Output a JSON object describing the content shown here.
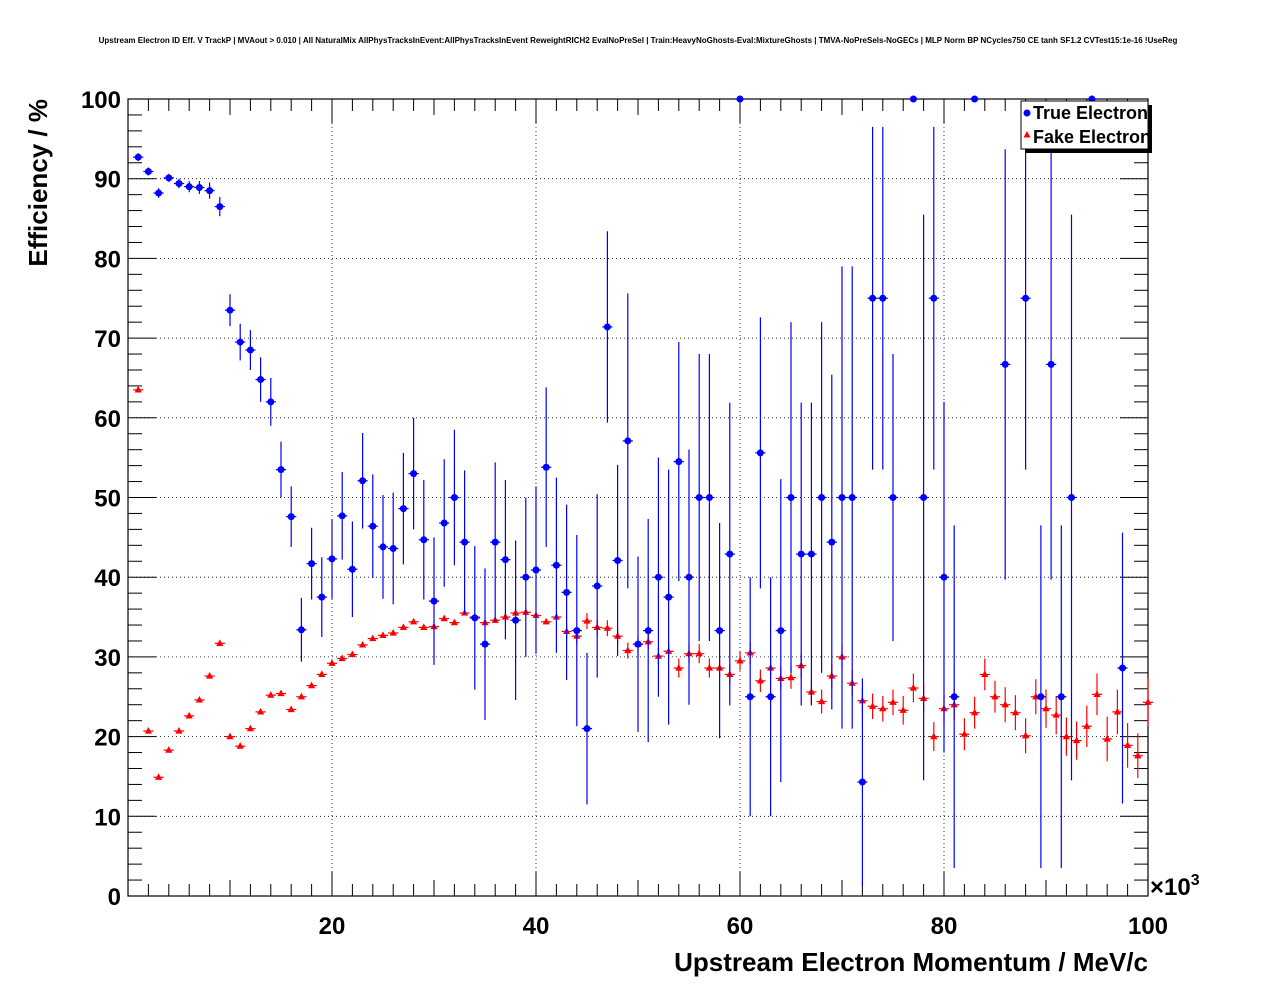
{
  "chart_data": {
    "type": "scatter",
    "title": "Upstream Electron ID Eff. V TrackP | MVAout > 0.010 | All NaturalMix AllPhysTracksInEvent:AllPhysTracksInEvent ReweightRICH2 EvalNoPreSel | Train:HeavyNoGhosts-Eval:MixtureGhosts | TMVA-NoPreSels-NoGECs | MLP Norm BP NCycles750 CE tanh SF1.2 CVTest15:1e-16 !UseReg",
    "xlabel": "Upstream Electron Momentum / MeV/c",
    "ylabel": "Efficiency / %",
    "x_exponent_label": "×10",
    "x_exponent_power": "3",
    "xlim": [
      0,
      100
    ],
    "ylim": [
      0,
      100
    ],
    "x_ticks": [
      "20",
      "40",
      "60",
      "80",
      "100"
    ],
    "y_ticks": [
      "0",
      "10",
      "20",
      "30",
      "40",
      "50",
      "60",
      "70",
      "80",
      "90",
      "100"
    ],
    "grid": true,
    "legend_position": "top-right",
    "colors": {
      "true_electron": "#0000ff",
      "fake_electron": "#ff0000",
      "axis": "#000000"
    },
    "series": [
      {
        "name": "True Electron",
        "marker": "circle",
        "points": [
          [
            1,
            92.7,
            0.5
          ],
          [
            2,
            90.9,
            0.5
          ],
          [
            3,
            88.2,
            0.6
          ],
          [
            4,
            90.1,
            0.5
          ],
          [
            5,
            89.4,
            0.6
          ],
          [
            6,
            89.0,
            0.7
          ],
          [
            7,
            88.9,
            0.8
          ],
          [
            8,
            88.5,
            1.0
          ],
          [
            9,
            86.5,
            1.2
          ],
          [
            10,
            73.5,
            2.0
          ],
          [
            11,
            69.5,
            2.3
          ],
          [
            12,
            68.5,
            2.5
          ],
          [
            13,
            64.8,
            2.8
          ],
          [
            14,
            62.0,
            3.0
          ],
          [
            15,
            53.5,
            3.5
          ],
          [
            16,
            47.6,
            3.8
          ],
          [
            17,
            33.4,
            4.0
          ],
          [
            18,
            41.7,
            4.5
          ],
          [
            19,
            37.5,
            5.0
          ],
          [
            20,
            42.3,
            5.0
          ],
          [
            21,
            47.7,
            5.5
          ],
          [
            22,
            41.0,
            6.0
          ],
          [
            23,
            52.1,
            6.0
          ],
          [
            24,
            46.4,
            6.5
          ],
          [
            25,
            43.8,
            6.5
          ],
          [
            26,
            43.6,
            7.0
          ],
          [
            27,
            48.6,
            7.0
          ],
          [
            28,
            53.0,
            7.0
          ],
          [
            29,
            44.7,
            7.5
          ],
          [
            30,
            37.0,
            8.0
          ],
          [
            31,
            46.8,
            8.0
          ],
          [
            32,
            50.0,
            8.5
          ],
          [
            33,
            44.4,
            9.0
          ],
          [
            34,
            34.9,
            9.0
          ],
          [
            35,
            31.6,
            9.5
          ],
          [
            36,
            44.4,
            10.0
          ],
          [
            37,
            42.2,
            10.0
          ],
          [
            38,
            34.6,
            10.0
          ],
          [
            39,
            40.0,
            10.0
          ],
          [
            40,
            40.9,
            10.5
          ],
          [
            41,
            53.8,
            10.0
          ],
          [
            42,
            41.5,
            11.0
          ],
          [
            43,
            38.1,
            11.0
          ],
          [
            44,
            33.3,
            12.0
          ],
          [
            45,
            21.0,
            9.5
          ],
          [
            46,
            38.9,
            11.5
          ],
          [
            47,
            71.4,
            12.0
          ],
          [
            48,
            42.1,
            12.0
          ],
          [
            49,
            57.1,
            18.5
          ],
          [
            50,
            31.6,
            11.0
          ],
          [
            51,
            33.3,
            14.0
          ],
          [
            52,
            40.0,
            15.0
          ],
          [
            53,
            37.5,
            16.0
          ],
          [
            54,
            54.5,
            15.0
          ],
          [
            55,
            40.0,
            16.0
          ],
          [
            56,
            50.0,
            18.0
          ],
          [
            57,
            50.0,
            18.0
          ],
          [
            58,
            33.3,
            13.5
          ],
          [
            59,
            42.9,
            19.0
          ],
          [
            60,
            100.0,
            0
          ],
          [
            61,
            25.0,
            15.0
          ],
          [
            62,
            55.6,
            17.0
          ],
          [
            63,
            25.0,
            15.0
          ],
          [
            64,
            33.3,
            19.0
          ],
          [
            65,
            50.0,
            22.0
          ],
          [
            66,
            42.9,
            19.0
          ],
          [
            67,
            42.9,
            19.0
          ],
          [
            68,
            50.0,
            22.0
          ],
          [
            69,
            44.4,
            21.0
          ],
          [
            70,
            50.0,
            29.0
          ],
          [
            71,
            50.0,
            29.0
          ],
          [
            72,
            14.3,
            13.0
          ],
          [
            73,
            75.0,
            21.5
          ],
          [
            74,
            75.0,
            21.5
          ],
          [
            75,
            50.0,
            18.0
          ],
          [
            77,
            100.0,
            0
          ],
          [
            78,
            50.0,
            35.5
          ],
          [
            79,
            75.0,
            21.5
          ],
          [
            80,
            40.0,
            22.0
          ],
          [
            81,
            25.0,
            21.5
          ],
          [
            83,
            100.0,
            0
          ],
          [
            86,
            66.7,
            27.0
          ],
          [
            88,
            75.0,
            21.5
          ],
          [
            89.5,
            25.0,
            21.5
          ],
          [
            90.5,
            66.7,
            27.0
          ],
          [
            91.5,
            25.0,
            21.5
          ],
          [
            92.5,
            50.0,
            35.5
          ],
          [
            94.5,
            100.0,
            0
          ],
          [
            97.5,
            28.6,
            17.0
          ]
        ]
      },
      {
        "name": "Fake Electron",
        "marker": "triangle",
        "points": [
          [
            1,
            63.5,
            0
          ],
          [
            2,
            20.7,
            0
          ],
          [
            3,
            14.9,
            0
          ],
          [
            4,
            18.3,
            0
          ],
          [
            5,
            20.7,
            0
          ],
          [
            6,
            22.6,
            0
          ],
          [
            7,
            24.6,
            0
          ],
          [
            8,
            27.6,
            0
          ],
          [
            9,
            31.7,
            0
          ],
          [
            10,
            20.0,
            0
          ],
          [
            11,
            18.8,
            0
          ],
          [
            12,
            21.0,
            0
          ],
          [
            13,
            23.1,
            0
          ],
          [
            14,
            25.2,
            0
          ],
          [
            15,
            25.4,
            0
          ],
          [
            16,
            23.4,
            0
          ],
          [
            17,
            25.0,
            0
          ],
          [
            18,
            26.4,
            0
          ],
          [
            19,
            27.8,
            0
          ],
          [
            20,
            29.2,
            0
          ],
          [
            21,
            29.8,
            0
          ],
          [
            22,
            30.3,
            0
          ],
          [
            23,
            31.5,
            0
          ],
          [
            24,
            32.3,
            0
          ],
          [
            25,
            32.7,
            0
          ],
          [
            26,
            33.0,
            0
          ],
          [
            27,
            33.7,
            0
          ],
          [
            28,
            34.4,
            0
          ],
          [
            29,
            33.7,
            0
          ],
          [
            30,
            33.8,
            0
          ],
          [
            31,
            34.8,
            0
          ],
          [
            32,
            34.3,
            0
          ],
          [
            33,
            35.5,
            0
          ],
          [
            34,
            35.0,
            0
          ],
          [
            35,
            34.3,
            0
          ],
          [
            36,
            34.6,
            0
          ],
          [
            37,
            35.0,
            0
          ],
          [
            38,
            35.5,
            0
          ],
          [
            39,
            35.6,
            0
          ],
          [
            40,
            35.2,
            0
          ],
          [
            41,
            34.4,
            0
          ],
          [
            42,
            35.0,
            0
          ],
          [
            43,
            33.2,
            1.0
          ],
          [
            44,
            32.6,
            1.0
          ],
          [
            45,
            34.5,
            1.0
          ],
          [
            46,
            33.7,
            1.0
          ],
          [
            47,
            33.6,
            1.0
          ],
          [
            48,
            32.6,
            1.0
          ],
          [
            49,
            30.8,
            1.0
          ],
          [
            50,
            31.6,
            1.0
          ],
          [
            51,
            31.9,
            1.0
          ],
          [
            52,
            30.1,
            1.0
          ],
          [
            53,
            30.7,
            1.0
          ],
          [
            54,
            28.6,
            1.2
          ],
          [
            55,
            30.4,
            1.2
          ],
          [
            56,
            30.4,
            1.2
          ],
          [
            57,
            28.6,
            1.2
          ],
          [
            58,
            28.6,
            1.2
          ],
          [
            59,
            27.8,
            1.2
          ],
          [
            60,
            29.5,
            1.2
          ],
          [
            61,
            30.5,
            1.4
          ],
          [
            62,
            27.0,
            1.4
          ],
          [
            63,
            28.6,
            1.4
          ],
          [
            64,
            27.3,
            1.4
          ],
          [
            65,
            27.4,
            1.4
          ],
          [
            66,
            28.9,
            1.5
          ],
          [
            67,
            25.6,
            1.5
          ],
          [
            68,
            24.4,
            1.5
          ],
          [
            69,
            27.6,
            1.5
          ],
          [
            70,
            30.0,
            1.5
          ],
          [
            71,
            26.7,
            1.6
          ],
          [
            72,
            24.5,
            1.6
          ],
          [
            73,
            23.8,
            1.6
          ],
          [
            74,
            23.5,
            1.6
          ],
          [
            75,
            24.3,
            1.6
          ],
          [
            76,
            23.3,
            1.8
          ],
          [
            77,
            26.1,
            1.8
          ],
          [
            78,
            24.8,
            1.8
          ],
          [
            79,
            20.0,
            1.8
          ],
          [
            80,
            23.5,
            1.8
          ],
          [
            81,
            24.0,
            2.0
          ],
          [
            82,
            20.3,
            2.0
          ],
          [
            83,
            23.0,
            2.0
          ],
          [
            84,
            27.8,
            2.0
          ],
          [
            85,
            25.0,
            2.0
          ],
          [
            86,
            24.0,
            2.2
          ],
          [
            87,
            23.0,
            2.2
          ],
          [
            88,
            20.1,
            2.2
          ],
          [
            89,
            25.0,
            2.2
          ],
          [
            90,
            23.5,
            2.4
          ],
          [
            91,
            22.7,
            2.4
          ],
          [
            92,
            20.0,
            2.4
          ],
          [
            93,
            19.5,
            2.4
          ],
          [
            94,
            21.3,
            2.6
          ],
          [
            95,
            25.3,
            2.6
          ],
          [
            96,
            19.7,
            2.8
          ],
          [
            97,
            23.1,
            2.8
          ],
          [
            98,
            18.9,
            2.8
          ],
          [
            99,
            17.6,
            2.8
          ],
          [
            100,
            24.3,
            3.0
          ]
        ]
      }
    ]
  }
}
